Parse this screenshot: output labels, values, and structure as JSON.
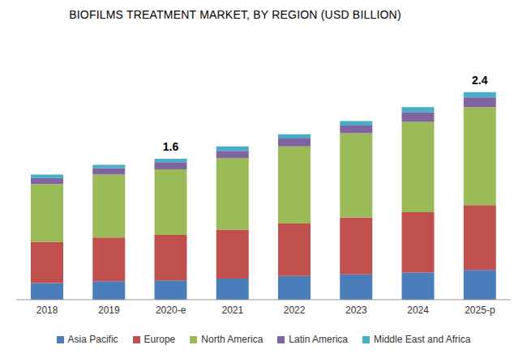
{
  "chart_data": {
    "type": "bar",
    "title": "BIOFILMS TREATMENT MARKET, BY REGION (USD BILLION)",
    "stacked": true,
    "tick_labels": "x",
    "legend": "bottom",
    "categories": [
      "2018",
      "2019",
      "2020-e",
      "2021",
      "2022",
      "2023",
      "2024",
      "2025-p"
    ],
    "series": [
      {
        "name": "Asia Pacific",
        "color": "#4a7ebb",
        "values": [
          0.19,
          0.21,
          0.22,
          0.24,
          0.27,
          0.29,
          0.31,
          0.34
        ]
      },
      {
        "name": "Europe",
        "color": "#c0504d",
        "values": [
          0.47,
          0.5,
          0.52,
          0.56,
          0.6,
          0.65,
          0.69,
          0.74
        ]
      },
      {
        "name": "North America",
        "color": "#9bbb59",
        "values": [
          0.66,
          0.72,
          0.75,
          0.82,
          0.88,
          0.96,
          1.03,
          1.12
        ]
      },
      {
        "name": "Latin America",
        "color": "#8064a2",
        "values": [
          0.07,
          0.07,
          0.08,
          0.08,
          0.09,
          0.09,
          0.11,
          0.11
        ]
      },
      {
        "name": "Middle East and Africa",
        "color": "#4bacc6",
        "values": [
          0.04,
          0.04,
          0.04,
          0.05,
          0.05,
          0.05,
          0.06,
          0.06
        ]
      }
    ],
    "annotations": [
      {
        "category": "2020-e",
        "text": "1.6"
      },
      {
        "category": "2025-p",
        "text": "2.4"
      }
    ]
  }
}
